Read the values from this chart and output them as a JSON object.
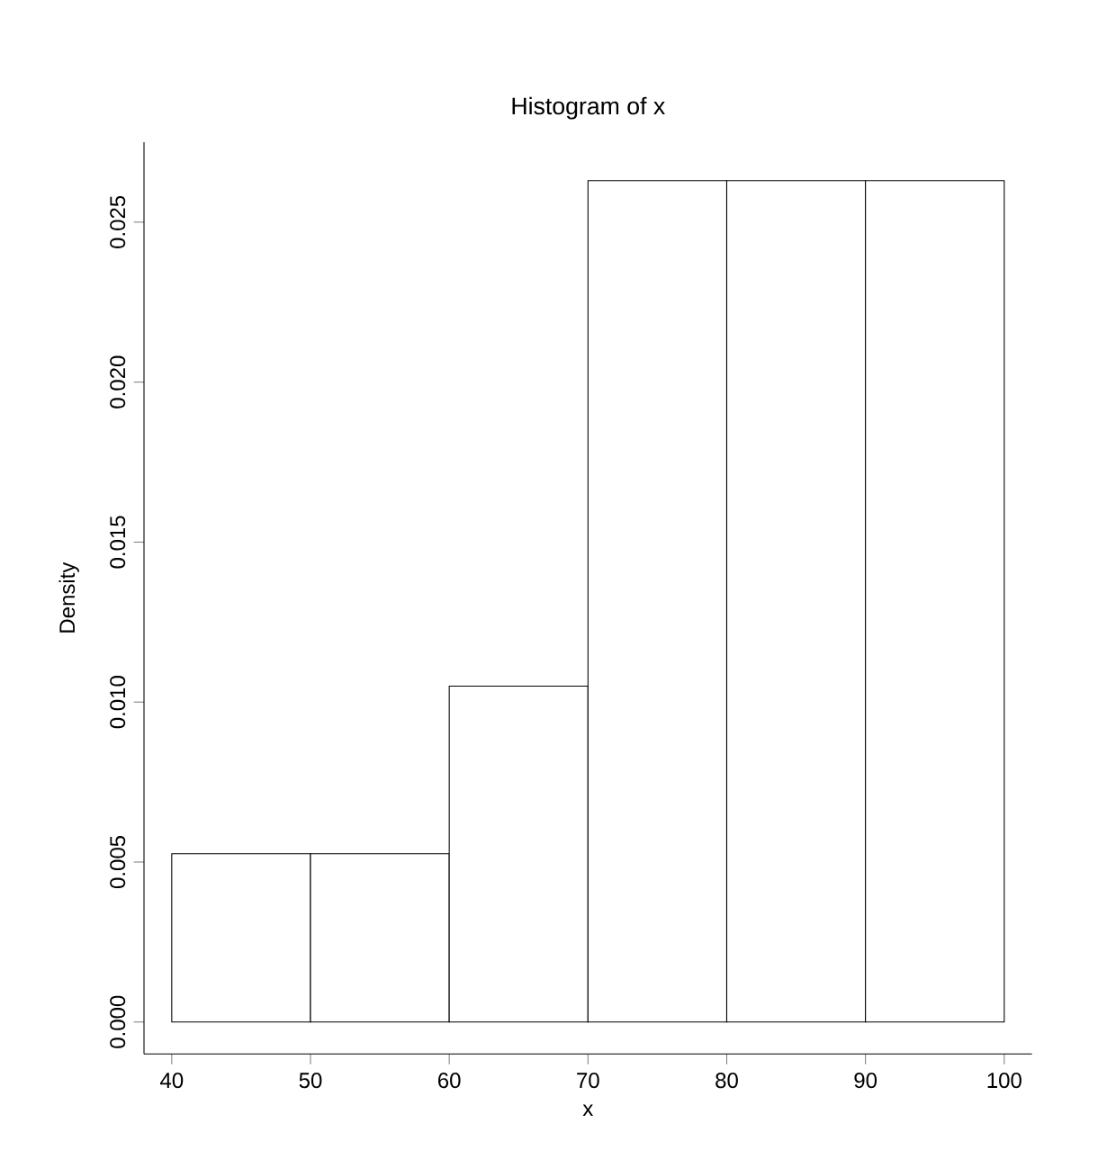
{
  "chart_data": {
    "type": "histogram",
    "title": "Histogram of x",
    "xlabel": "x",
    "ylabel": "Density",
    "bins": [
      40,
      50,
      60,
      70,
      80,
      90,
      100
    ],
    "values": [
      0.00526,
      0.00526,
      0.0105,
      0.0263,
      0.0263,
      0.0263
    ],
    "color": "#ffffff",
    "xlim": [
      38,
      102
    ],
    "ylim": [
      -0.001,
      0.0275
    ],
    "xticks": [
      40,
      50,
      60,
      70,
      80,
      90,
      100
    ],
    "yticks": [
      {
        "value": 0,
        "label": "0.000"
      },
      {
        "value": 0.005,
        "label": "0.005"
      },
      {
        "value": 0.01,
        "label": "0.010"
      },
      {
        "value": 0.015,
        "label": "0.015"
      },
      {
        "value": 0.02,
        "label": "0.020"
      },
      {
        "value": 0.025,
        "label": "0.025"
      }
    ],
    "grid": false
  }
}
